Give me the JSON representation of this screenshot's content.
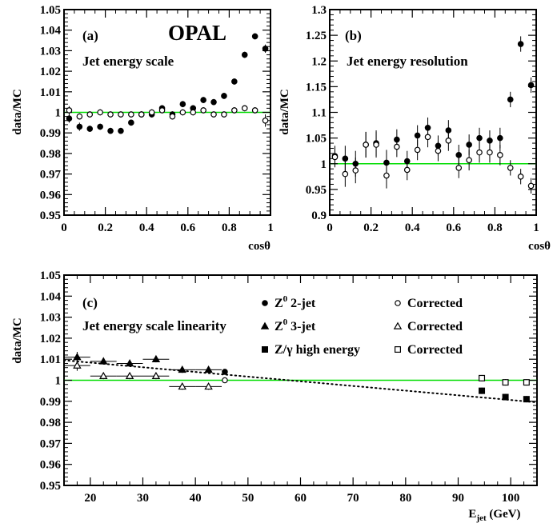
{
  "figure": {
    "experiment_label": "OPAL",
    "y_axis_label": "data/MC",
    "colors": {
      "reference_line": "#00dd00",
      "data": "#000000"
    }
  },
  "chart_data": [
    {
      "type": "scatter",
      "panel_label": "(a)",
      "title": "Jet energy scale",
      "xlabel": "cosθ",
      "ylabel": "data/MC",
      "xlim": [
        0,
        1
      ],
      "ylim": [
        0.95,
        1.05
      ],
      "xticks": [
        "0",
        "0.2",
        "0.4",
        "0.6",
        "0.8",
        "1"
      ],
      "yticks": [
        "0.95",
        "0.96",
        "0.97",
        "0.98",
        "0.99",
        "1",
        "1.01",
        "1.02",
        "1.03",
        "1.04",
        "1.05"
      ],
      "reference_line": 1,
      "grid": false,
      "series": [
        {
          "marker": "filled-circle",
          "x": [
            0.025,
            0.075,
            0.125,
            0.175,
            0.225,
            0.275,
            0.325,
            0.375,
            0.425,
            0.475,
            0.525,
            0.575,
            0.625,
            0.675,
            0.725,
            0.775,
            0.825,
            0.875,
            0.925,
            0.975
          ],
          "y": [
            0.997,
            0.993,
            0.992,
            0.993,
            0.991,
            0.991,
            0.995,
            0.999,
            0.999,
            1.002,
            0.999,
            1.004,
            1.002,
            1.006,
            1.005,
            1.008,
            1.015,
            1.028,
            1.037,
            1.031
          ],
          "yerr": [
            0.002,
            0.002,
            0.0015,
            0.0015,
            0.0015,
            0.0015,
            0.0015,
            0.0015,
            0.0015,
            0.0015,
            0.0015,
            0.0015,
            0.0015,
            0.0015,
            0.0015,
            0.0015,
            0.0015,
            0.0015,
            0.0015,
            0.002
          ]
        },
        {
          "marker": "open-circle",
          "x": [
            0.025,
            0.075,
            0.125,
            0.175,
            0.225,
            0.275,
            0.325,
            0.375,
            0.425,
            0.475,
            0.525,
            0.575,
            0.625,
            0.675,
            0.725,
            0.775,
            0.825,
            0.875,
            0.925,
            0.975
          ],
          "y": [
            1.001,
            0.998,
            0.999,
            1.0,
            0.999,
            0.999,
            0.999,
            0.999,
            1.0,
            1.001,
            0.998,
            1.0,
            1.0,
            1.001,
            0.999,
            0.999,
            1.001,
            1.002,
            1.001,
            0.996
          ],
          "yerr": [
            0.002,
            0.0015,
            0.0015,
            0.0015,
            0.0015,
            0.0015,
            0.0015,
            0.0015,
            0.0015,
            0.0015,
            0.0015,
            0.0015,
            0.0015,
            0.0015,
            0.0015,
            0.0015,
            0.0015,
            0.0015,
            0.0015,
            0.003
          ]
        }
      ]
    },
    {
      "type": "scatter",
      "panel_label": "(b)",
      "title": "Jet energy resolution",
      "xlabel": "cosθ",
      "ylabel": "data/MC",
      "xlim": [
        0,
        1
      ],
      "ylim": [
        0.9,
        1.3
      ],
      "xticks": [
        "0",
        "0.2",
        "0.4",
        "0.6",
        "0.8",
        "1"
      ],
      "yticks": [
        "0.9",
        "0.95",
        "1",
        "1.05",
        "1.1",
        "1.15",
        "1.2",
        "1.25",
        "1.3"
      ],
      "reference_line": 1,
      "grid": false,
      "series": [
        {
          "marker": "filled-circle",
          "x": [
            0.025,
            0.075,
            0.125,
            0.175,
            0.225,
            0.275,
            0.325,
            0.375,
            0.425,
            0.475,
            0.525,
            0.575,
            0.625,
            0.675,
            0.725,
            0.775,
            0.825,
            0.875,
            0.925,
            0.975
          ],
          "y": [
            1.015,
            1.01,
            1.0,
            1.037,
            1.04,
            1.002,
            1.047,
            1.005,
            1.055,
            1.07,
            1.035,
            1.065,
            1.017,
            1.037,
            1.05,
            1.045,
            1.05,
            1.125,
            1.233,
            1.153
          ],
          "yerr": [
            0.02,
            0.025,
            0.025,
            0.025,
            0.025,
            0.025,
            0.02,
            0.02,
            0.02,
            0.02,
            0.02,
            0.02,
            0.02,
            0.02,
            0.02,
            0.02,
            0.02,
            0.015,
            0.015,
            0.015
          ]
        },
        {
          "marker": "open-circle",
          "x": [
            0.025,
            0.075,
            0.125,
            0.175,
            0.225,
            0.275,
            0.325,
            0.375,
            0.425,
            0.475,
            0.525,
            0.575,
            0.625,
            0.675,
            0.725,
            0.775,
            0.825,
            0.875,
            0.925,
            0.975
          ],
          "y": [
            1.013,
            0.98,
            0.987,
            1.037,
            1.037,
            0.977,
            1.033,
            0.988,
            1.027,
            1.052,
            1.025,
            1.045,
            0.992,
            1.007,
            1.022,
            1.022,
            1.017,
            0.992,
            0.975,
            0.957
          ],
          "yerr": [
            0.02,
            0.025,
            0.025,
            0.025,
            0.025,
            0.025,
            0.02,
            0.02,
            0.02,
            0.02,
            0.02,
            0.02,
            0.02,
            0.02,
            0.02,
            0.02,
            0.02,
            0.015,
            0.015,
            0.015
          ]
        }
      ]
    },
    {
      "type": "scatter",
      "panel_label": "(c)",
      "title": "Jet energy scale linearity",
      "xlabel": "E_jet (GeV)",
      "ylabel": "data/MC",
      "xlim": [
        15,
        105
      ],
      "ylim": [
        0.95,
        1.05
      ],
      "xticks": [
        "20",
        "30",
        "40",
        "50",
        "60",
        "70",
        "80",
        "90",
        "100"
      ],
      "yticks": [
        "0.95",
        "0.96",
        "0.97",
        "0.98",
        "0.99",
        "1",
        "1.01",
        "1.02",
        "1.03",
        "1.04",
        "1.05"
      ],
      "reference_line": 1,
      "grid": false,
      "fit_line": {
        "x": [
          15,
          105
        ],
        "y": [
          1.0095,
          0.9895
        ]
      },
      "legend": {
        "placement": "top-right",
        "entries": [
          {
            "marker": "filled-circle",
            "label": "Z⁰ 2-jet"
          },
          {
            "marker": "open-circle",
            "label": "Corrected"
          },
          {
            "marker": "filled-triangle",
            "label": "Z⁰ 3-jet"
          },
          {
            "marker": "open-triangle",
            "label": "Corrected"
          },
          {
            "marker": "filled-square",
            "label": "Z/γ high energy"
          },
          {
            "marker": "open-square",
            "label": "Corrected"
          }
        ]
      },
      "series": [
        {
          "name": "Z⁰ 2-jet",
          "marker": "filled-circle",
          "x": [
            45.6
          ],
          "y": [
            1.004
          ],
          "xerr": [
            0
          ],
          "yerr": [
            0.0005
          ]
        },
        {
          "name": "Corrected",
          "marker": "open-circle",
          "x": [
            45.6
          ],
          "y": [
            1.0
          ],
          "xerr": [
            0
          ],
          "yerr": [
            0.0005
          ]
        },
        {
          "name": "Z⁰ 3-jet",
          "marker": "filled-triangle",
          "x": [
            17.5,
            22.5,
            27.5,
            32.5,
            37.5,
            42.5
          ],
          "y": [
            1.011,
            1.009,
            1.008,
            1.01,
            1.005,
            1.005
          ],
          "xerr": [
            2.5,
            2.5,
            2.5,
            2.5,
            2.5,
            2.5
          ],
          "yerr": [
            0.0025,
            0.0015,
            0.0015,
            0.0015,
            0.0015,
            0.0015
          ]
        },
        {
          "name": "Corrected",
          "marker": "open-triangle",
          "x": [
            17.5,
            22.5,
            27.5,
            32.5,
            37.5,
            42.5
          ],
          "y": [
            1.007,
            1.002,
            1.002,
            1.002,
            0.997,
            0.997
          ],
          "xerr": [
            2.5,
            2.5,
            2.5,
            2.5,
            2.5,
            2.5
          ],
          "yerr": [
            0.0025,
            0.0015,
            0.0015,
            0.0015,
            0.0015,
            0.0015
          ]
        },
        {
          "name": "Z/γ high energy",
          "marker": "filled-square",
          "x": [
            94.5,
            99.0,
            103.0
          ],
          "y": [
            0.995,
            0.992,
            0.991
          ],
          "xerr": [
            0,
            0,
            0
          ],
          "yerr": [
            0.0015,
            0.0015,
            0.0015
          ]
        },
        {
          "name": "Corrected",
          "marker": "open-square",
          "x": [
            94.5,
            99.0,
            103.0
          ],
          "y": [
            1.001,
            0.999,
            0.999
          ],
          "xerr": [
            0,
            0,
            0
          ],
          "yerr": [
            0.0015,
            0.0015,
            0.0015
          ]
        }
      ]
    }
  ]
}
